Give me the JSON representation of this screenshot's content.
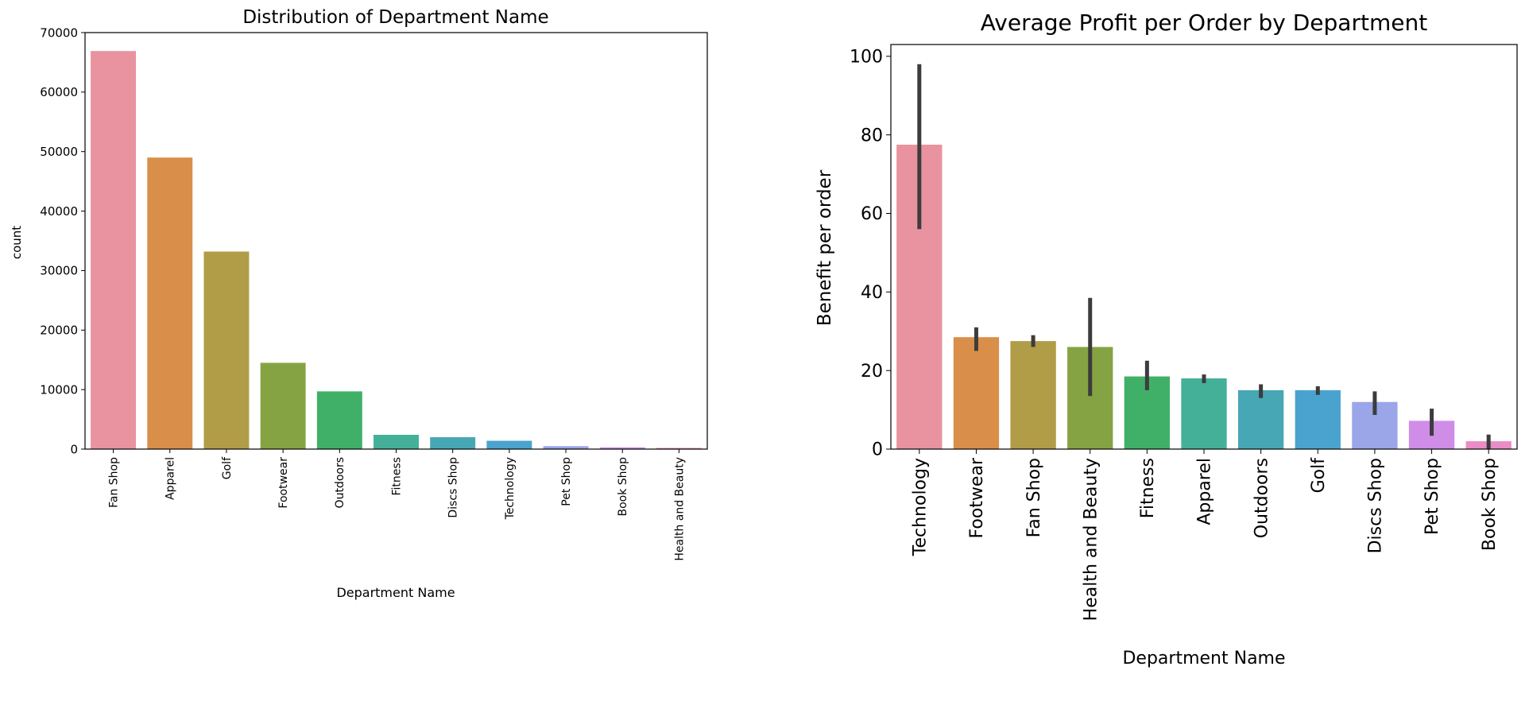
{
  "chart_data": [
    {
      "type": "bar",
      "title": "Distribution of Department Name",
      "xlabel": "Department Name",
      "ylabel": "count",
      "ylim": [
        0,
        70000
      ],
      "yticks": [
        0,
        10000,
        20000,
        30000,
        40000,
        50000,
        60000,
        70000
      ],
      "categories": [
        "Fan Shop",
        "Apparel",
        "Golf",
        "Footwear",
        "Outdoors",
        "Fitness",
        "Discs Shop",
        "Technology",
        "Pet Shop",
        "Book Shop",
        "Health and Beauty"
      ],
      "values": [
        66900,
        49000,
        33200,
        14500,
        9700,
        2400,
        2000,
        1400,
        500,
        300,
        200
      ],
      "colors": [
        "#e8939f",
        "#d98f49",
        "#b19c48",
        "#85a343",
        "#40b068",
        "#44b098",
        "#47a7b4",
        "#4aa3cf",
        "#9aa6e8",
        "#cf8de8",
        "#ea8cc6"
      ],
      "grid": false,
      "legend": "none"
    },
    {
      "type": "bar",
      "title": "Average Profit per Order by Department",
      "xlabel": "Department Name",
      "ylabel": "Benefit per order",
      "ylim": [
        0,
        103
      ],
      "yticks": [
        0,
        20,
        40,
        60,
        80,
        100
      ],
      "categories": [
        "Technology",
        "Footwear",
        "Fan Shop",
        "Health and Beauty",
        "Fitness",
        "Apparel",
        "Outdoors",
        "Golf",
        "Discs Shop",
        "Pet Shop",
        "Book Shop"
      ],
      "values": [
        77.5,
        28.5,
        27.5,
        26,
        18.5,
        18,
        15,
        15,
        12,
        7.2,
        2
      ],
      "error_bars": [
        [
          56,
          98
        ],
        [
          25,
          31
        ],
        [
          26,
          29
        ],
        [
          13.5,
          38.5
        ],
        [
          15,
          22.5
        ],
        [
          16.8,
          19
        ],
        [
          13,
          16.5
        ],
        [
          13.8,
          16
        ],
        [
          8.7,
          14.7
        ],
        [
          3.4,
          10.3
        ],
        [
          0,
          3.7
        ]
      ],
      "colors": [
        "#e8939f",
        "#d98f49",
        "#b19c48",
        "#85a343",
        "#40b068",
        "#44b098",
        "#47a7b4",
        "#4aa3cf",
        "#9aa6e8",
        "#cf8de8",
        "#ea8cc6"
      ],
      "grid": false,
      "legend": "none"
    }
  ]
}
